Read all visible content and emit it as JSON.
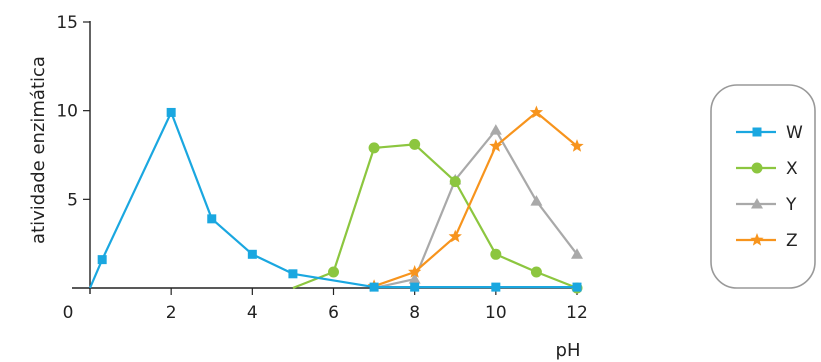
{
  "chart_data": {
    "type": "line",
    "xlabel": "pH",
    "ylabel": "atividade enzimática",
    "xlim": [
      0,
      12
    ],
    "ylim": [
      0,
      15
    ],
    "x_ticks": [
      0,
      2,
      4,
      6,
      8,
      10,
      12
    ],
    "y_ticks": [
      0,
      5,
      10,
      15
    ],
    "grid": false,
    "legend_position": "right",
    "series": [
      {
        "name": "W",
        "color": "#1aa7e0",
        "marker": "square",
        "points": [
          [
            0,
            0
          ],
          [
            0.3,
            1.6
          ],
          [
            2,
            9.9
          ],
          [
            3,
            3.9
          ],
          [
            4,
            1.9
          ],
          [
            5,
            0.8
          ],
          [
            7,
            0.05
          ],
          [
            8,
            0.05
          ],
          [
            10,
            0.05
          ],
          [
            12,
            0.05
          ]
        ]
      },
      {
        "name": "X",
        "color": "#8cc63f",
        "marker": "circle",
        "points": [
          [
            5,
            0
          ],
          [
            6,
            0.9
          ],
          [
            7,
            7.9
          ],
          [
            8,
            8.1
          ],
          [
            9,
            6.0
          ],
          [
            10,
            1.9
          ],
          [
            11,
            0.9
          ],
          [
            12,
            0
          ]
        ]
      },
      {
        "name": "Y",
        "color": "#a9a9a9",
        "marker": "triangle",
        "points": [
          [
            7,
            0
          ],
          [
            8,
            0.5
          ],
          [
            9,
            6.1
          ],
          [
            10,
            8.9
          ],
          [
            11,
            4.9
          ],
          [
            12,
            1.9
          ]
        ]
      },
      {
        "name": "Z",
        "color": "#f7941d",
        "marker": "star",
        "points": [
          [
            7,
            0.1
          ],
          [
            8,
            0.9
          ],
          [
            9,
            2.9
          ],
          [
            10,
            8.0
          ],
          [
            11,
            9.9
          ],
          [
            12,
            8.0
          ]
        ]
      }
    ]
  }
}
